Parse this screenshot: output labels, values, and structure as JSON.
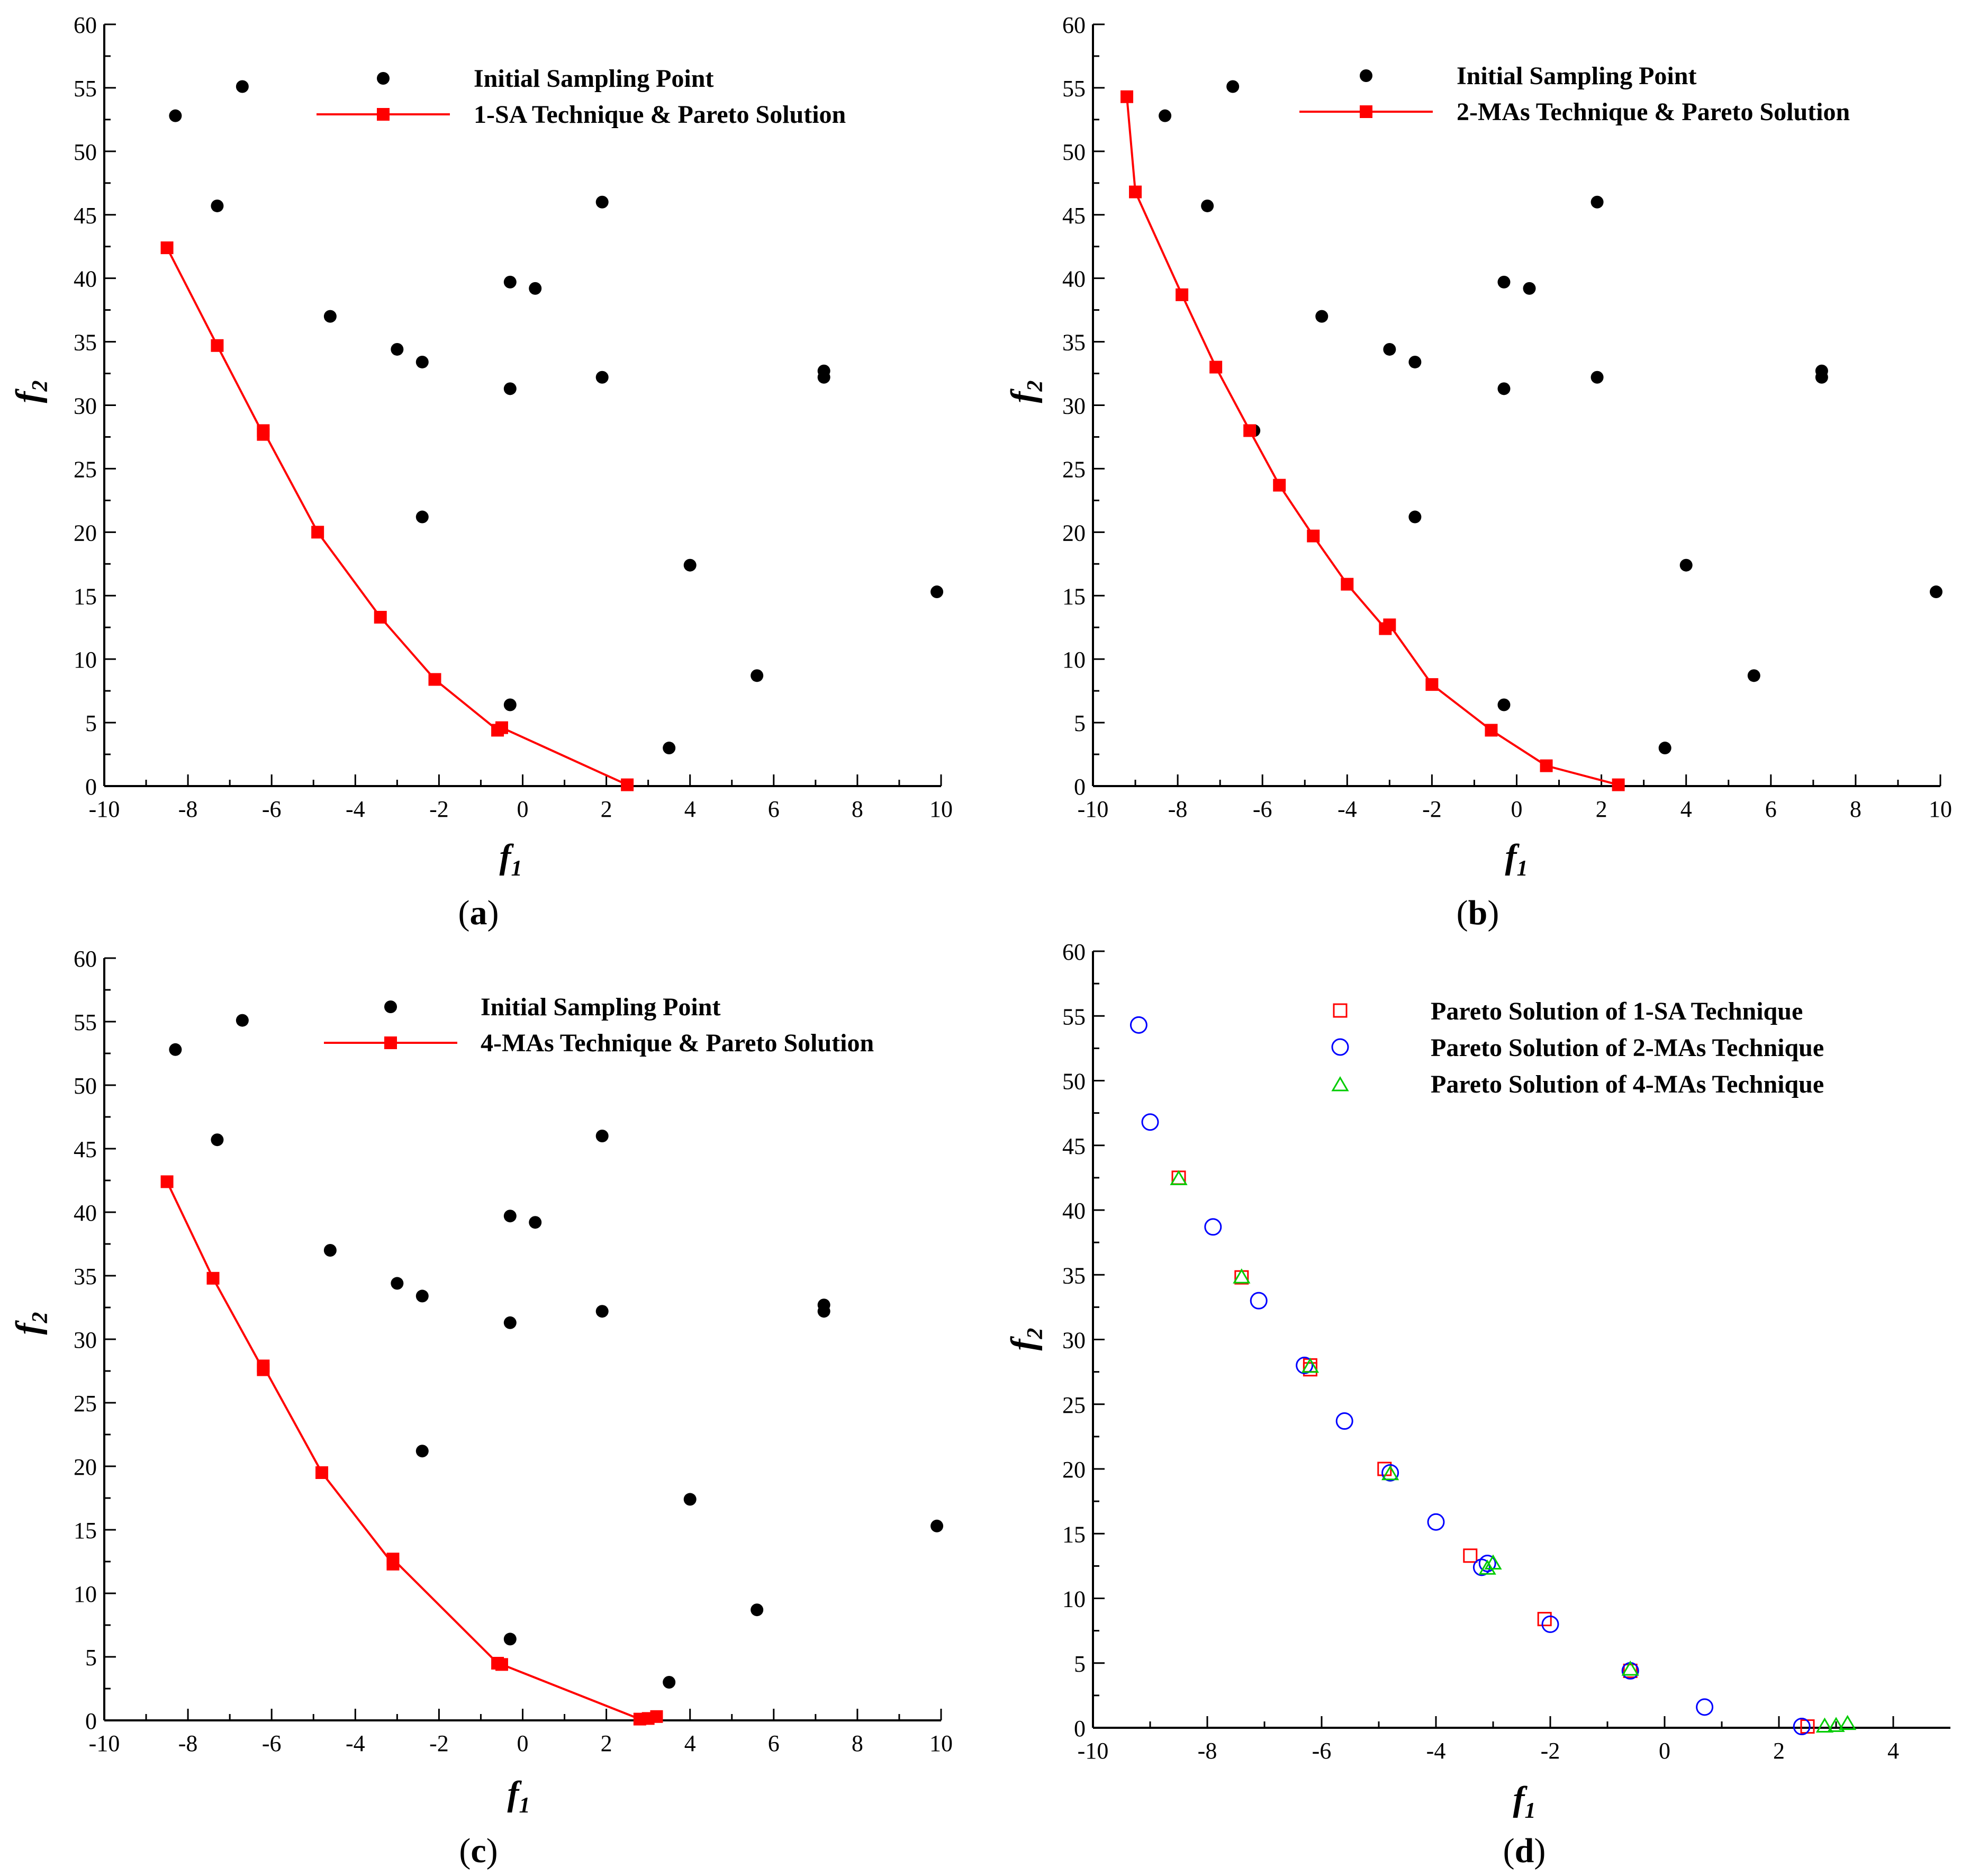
{
  "colors": {
    "pareto": "#ff0000",
    "sampling": "#000000",
    "sa": "#ff0000",
    "mas2": "#0000ff",
    "mas4": "#00cc00"
  },
  "chart_data": [
    {
      "type": "scatter",
      "panel": "a",
      "caption": "a",
      "xlabel": "f",
      "xsub": "1",
      "ylabel": "f",
      "ysub": "2",
      "xlim": [
        -10,
        10
      ],
      "ylim": [
        0,
        60
      ],
      "xticks": [
        "-10",
        "-8",
        "-6",
        "-4",
        "-2",
        "0",
        "2",
        "4",
        "6",
        "8",
        "10"
      ],
      "yticks": [
        "0",
        "5",
        "10",
        "15",
        "20",
        "25",
        "30",
        "35",
        "40",
        "45",
        "50",
        "55",
        "60"
      ],
      "legend": [
        "Initial Sampling Point",
        "1-SA Technique & Pareto Solution"
      ],
      "sampling": [
        [
          -8.3,
          52.8
        ],
        [
          -6.7,
          55.1
        ],
        [
          -7.3,
          45.7
        ],
        [
          -4.6,
          37.0
        ],
        [
          -3.0,
          34.4
        ],
        [
          -2.4,
          33.4
        ],
        [
          -2.4,
          21.2
        ],
        [
          -0.3,
          39.7
        ],
        [
          0.3,
          39.2
        ],
        [
          -0.3,
          31.3
        ],
        [
          -0.3,
          6.4
        ],
        [
          1.9,
          46.0
        ],
        [
          1.9,
          32.2
        ],
        [
          3.5,
          3.0
        ],
        [
          4.0,
          17.4
        ],
        [
          5.6,
          8.7
        ],
        [
          7.2,
          32.7
        ],
        [
          7.2,
          32.2
        ],
        [
          9.9,
          15.3
        ]
      ],
      "pareto": [
        [
          -8.5,
          42.4
        ],
        [
          -7.3,
          34.7
        ],
        [
          -6.2,
          27.7
        ],
        [
          -6.2,
          28.0
        ],
        [
          -4.9,
          20.0
        ],
        [
          -3.4,
          13.3
        ],
        [
          -2.1,
          8.4
        ],
        [
          -0.6,
          4.4
        ],
        [
          -0.5,
          4.6
        ],
        [
          2.5,
          0.1
        ]
      ]
    },
    {
      "type": "scatter",
      "panel": "b",
      "caption": "b",
      "xlabel": "f",
      "xsub": "1",
      "ylabel": "f",
      "ysub": "2",
      "xlim": [
        -10,
        10
      ],
      "ylim": [
        0,
        60
      ],
      "xticks": [
        "-10",
        "-8",
        "-6",
        "-4",
        "-2",
        "0",
        "2",
        "4",
        "6",
        "8",
        "10"
      ],
      "yticks": [
        "0",
        "5",
        "10",
        "15",
        "20",
        "25",
        "30",
        "35",
        "40",
        "45",
        "50",
        "55",
        "60"
      ],
      "legend": [
        "Initial Sampling Point",
        "2-MAs Technique & Pareto Solution"
      ],
      "sampling": [
        [
          -8.3,
          52.8
        ],
        [
          -6.7,
          55.1
        ],
        [
          -7.3,
          45.7
        ],
        [
          -4.6,
          37.0
        ],
        [
          -3.0,
          34.4
        ],
        [
          -2.4,
          33.4
        ],
        [
          -2.4,
          21.2
        ],
        [
          -0.3,
          39.7
        ],
        [
          0.3,
          39.2
        ],
        [
          -0.3,
          31.3
        ],
        [
          -0.3,
          6.4
        ],
        [
          1.9,
          46.0
        ],
        [
          1.9,
          32.2
        ],
        [
          3.5,
          3.0
        ],
        [
          4.0,
          17.4
        ],
        [
          5.6,
          8.7
        ],
        [
          7.2,
          32.7
        ],
        [
          7.2,
          32.2
        ],
        [
          9.9,
          15.3
        ],
        [
          -6.2,
          28.0
        ]
      ],
      "pareto": [
        [
          -9.2,
          54.3
        ],
        [
          -9.0,
          46.8
        ],
        [
          -7.9,
          38.7
        ],
        [
          -7.1,
          33.0
        ],
        [
          -6.3,
          28.0
        ],
        [
          -5.6,
          23.7
        ],
        [
          -4.8,
          19.7
        ],
        [
          -4.0,
          15.9
        ],
        [
          -3.1,
          12.4
        ],
        [
          -3.0,
          12.7
        ],
        [
          -2.0,
          8.0
        ],
        [
          -0.6,
          4.4
        ],
        [
          0.7,
          1.6
        ],
        [
          2.4,
          0.1
        ]
      ]
    },
    {
      "type": "scatter",
      "panel": "c",
      "caption": "c",
      "xlabel": "f",
      "xsub": "1",
      "ylabel": "f",
      "ysub": "2",
      "xlim": [
        -10,
        10
      ],
      "ylim": [
        0,
        60
      ],
      "xticks": [
        "-10",
        "-8",
        "-6",
        "-4",
        "-2",
        "0",
        "2",
        "4",
        "6",
        "8",
        "10"
      ],
      "yticks": [
        "0",
        "5",
        "10",
        "15",
        "20",
        "25",
        "30",
        "35",
        "40",
        "45",
        "50",
        "55",
        "60"
      ],
      "legend": [
        "Initial Sampling Point",
        "4-MAs Technique & Pareto Solution"
      ],
      "sampling": [
        [
          -8.3,
          52.8
        ],
        [
          -6.7,
          55.1
        ],
        [
          -7.3,
          45.7
        ],
        [
          -4.6,
          37.0
        ],
        [
          -3.0,
          34.4
        ],
        [
          -2.4,
          33.4
        ],
        [
          -2.4,
          21.2
        ],
        [
          -0.3,
          39.7
        ],
        [
          0.3,
          39.2
        ],
        [
          -0.3,
          31.3
        ],
        [
          -0.3,
          6.4
        ],
        [
          1.9,
          46.0
        ],
        [
          1.9,
          32.2
        ],
        [
          3.5,
          3.0
        ],
        [
          4.0,
          17.4
        ],
        [
          5.6,
          8.7
        ],
        [
          7.2,
          32.7
        ],
        [
          7.2,
          32.2
        ],
        [
          9.9,
          15.3
        ]
      ],
      "pareto": [
        [
          -8.5,
          42.4
        ],
        [
          -7.4,
          34.8
        ],
        [
          -6.2,
          27.6
        ],
        [
          -6.2,
          27.9
        ],
        [
          -4.8,
          19.5
        ],
        [
          -3.1,
          12.3
        ],
        [
          -3.1,
          12.7
        ],
        [
          -0.6,
          4.5
        ],
        [
          -0.5,
          4.4
        ],
        [
          2.8,
          0.1
        ],
        [
          3.0,
          0.15
        ],
        [
          3.2,
          0.3
        ]
      ]
    },
    {
      "type": "scatter",
      "panel": "d",
      "caption": "d",
      "xlabel": "f",
      "xsub": "1",
      "ylabel": "f",
      "ysub": "2",
      "xlim": [
        -10,
        5
      ],
      "ylim": [
        0,
        60
      ],
      "xticks": [
        "-10",
        "-8",
        "-6",
        "-4",
        "-2",
        "0",
        "2",
        "4"
      ],
      "yticks": [
        "0",
        "5",
        "10",
        "15",
        "20",
        "25",
        "30",
        "35",
        "40",
        "45",
        "50",
        "55",
        "60"
      ],
      "legend": [
        "Pareto Solution of 1-SA Technique",
        "Pareto Solution of 2-MAs Technique",
        "Pareto Solution of 4-MAs Technique"
      ],
      "series_sa": [
        [
          -8.5,
          42.5
        ],
        [
          -7.4,
          34.8
        ],
        [
          -6.2,
          28.0
        ],
        [
          -6.2,
          27.7
        ],
        [
          -4.9,
          20.0
        ],
        [
          -3.4,
          13.3
        ],
        [
          -2.1,
          8.4
        ],
        [
          -0.6,
          4.4
        ],
        [
          2.5,
          0.1
        ]
      ],
      "series_2mas": [
        [
          -9.2,
          54.3
        ],
        [
          -9.0,
          46.8
        ],
        [
          -7.9,
          38.7
        ],
        [
          -7.1,
          33.0
        ],
        [
          -6.3,
          28.0
        ],
        [
          -5.6,
          23.7
        ],
        [
          -4.8,
          19.7
        ],
        [
          -4.0,
          15.9
        ],
        [
          -3.2,
          12.4
        ],
        [
          -3.1,
          12.7
        ],
        [
          -2.0,
          8.0
        ],
        [
          -0.6,
          4.4
        ],
        [
          0.7,
          1.6
        ],
        [
          2.4,
          0.1
        ]
      ],
      "series_4mas": [
        [
          -8.5,
          42.4
        ],
        [
          -7.4,
          34.8
        ],
        [
          -6.2,
          27.9
        ],
        [
          -4.8,
          19.6
        ],
        [
          -3.1,
          12.3
        ],
        [
          -3.0,
          12.7
        ],
        [
          -0.6,
          4.5
        ],
        [
          2.8,
          0.1
        ],
        [
          3.0,
          0.15
        ],
        [
          3.2,
          0.3
        ]
      ]
    }
  ]
}
